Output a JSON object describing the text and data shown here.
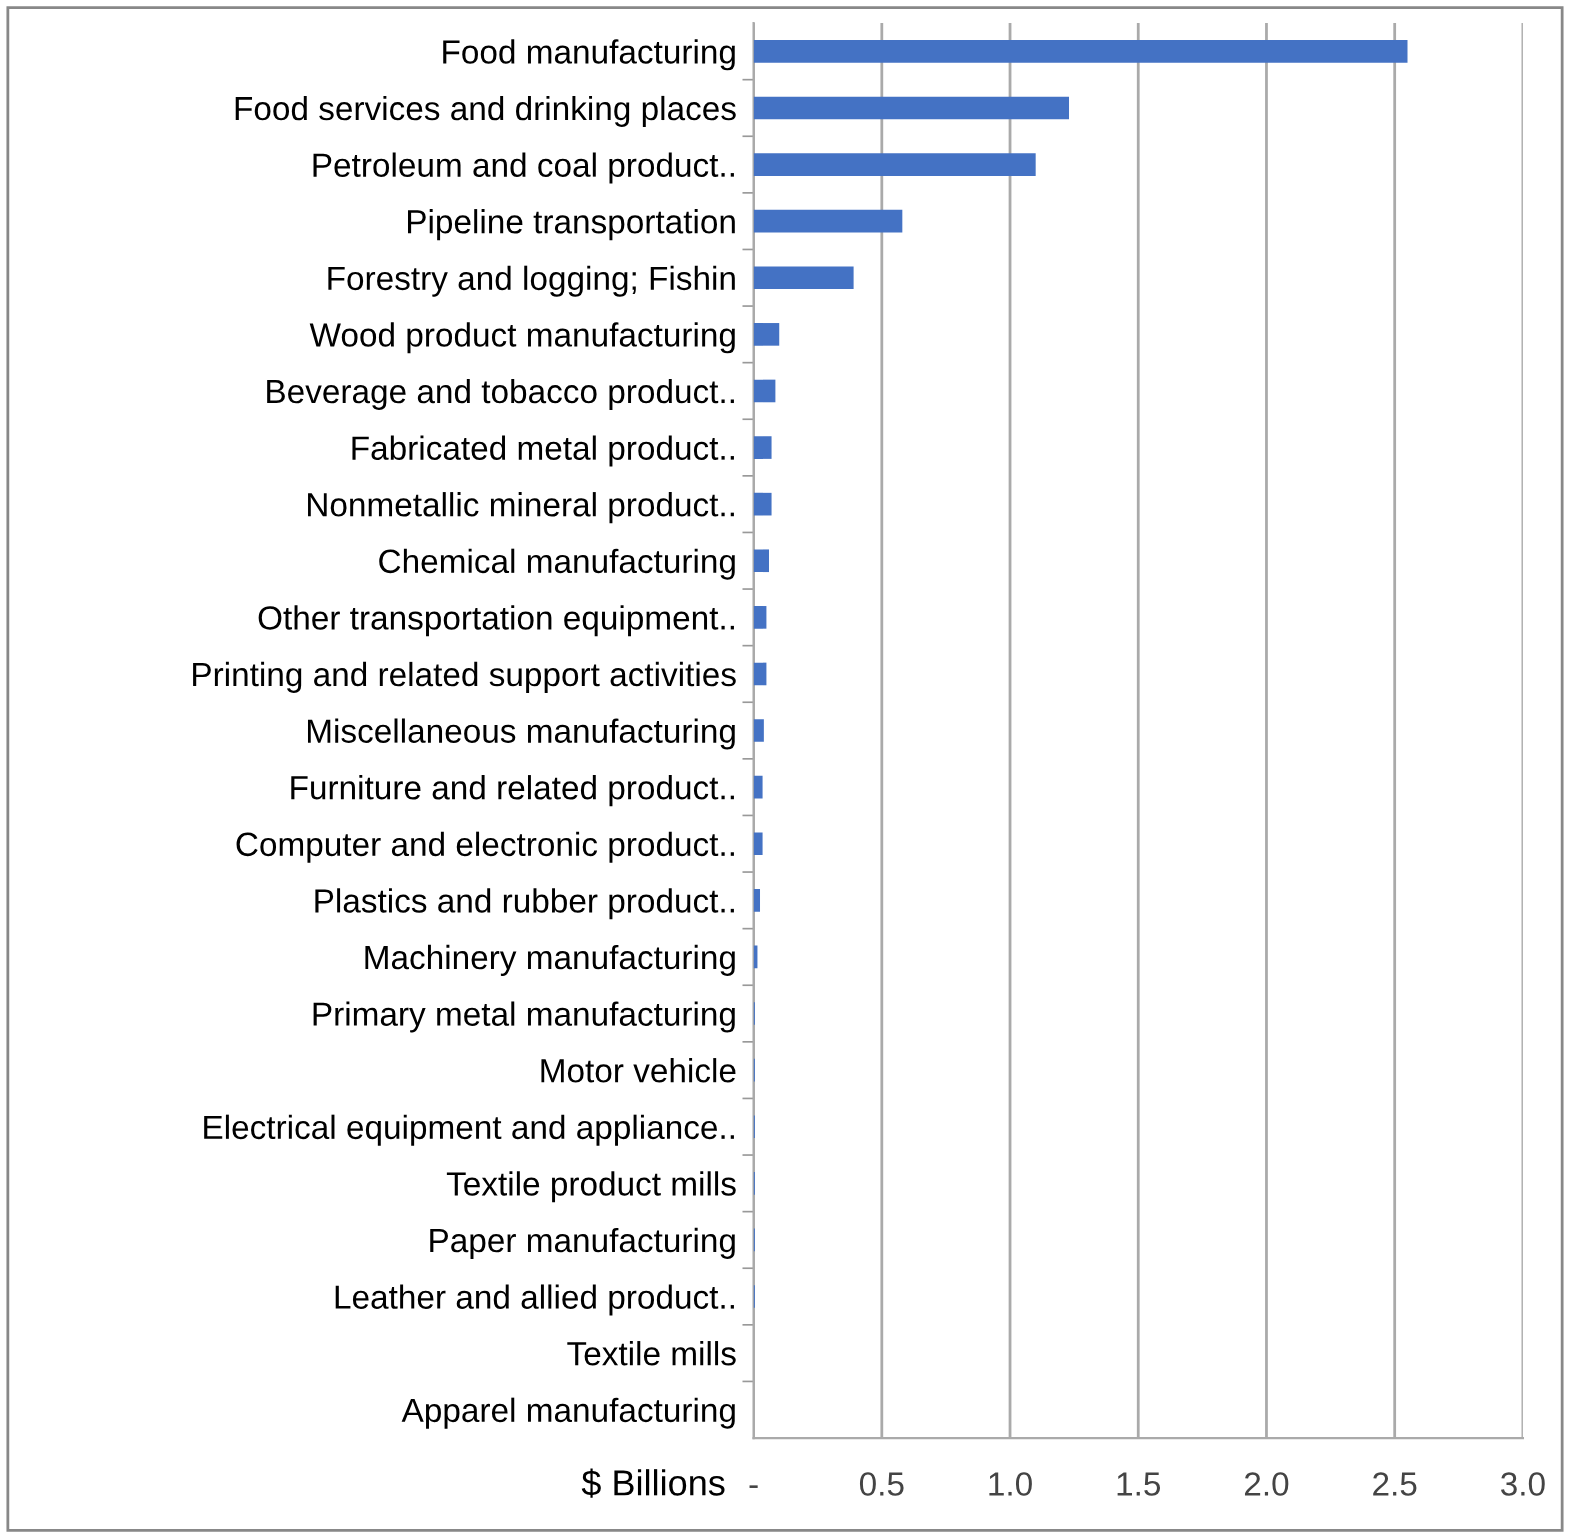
{
  "chart_data": {
    "type": "bar",
    "orientation": "horizontal",
    "xlabel": "$ Billions",
    "categories": [
      "Food manufacturing",
      "Food services and drinking places",
      "Petroleum and coal product..",
      "Pipeline transportation",
      "Forestry and logging; Fishin",
      "Wood product manufacturing",
      "Beverage and tobacco product..",
      "Fabricated metal product..",
      "Nonmetallic mineral product..",
      "Chemical manufacturing",
      "Other transportation equipment..",
      "Printing and related support activities",
      "Miscellaneous manufacturing",
      "Furniture and related product..",
      "Computer and electronic product..",
      "Plastics and rubber product..",
      "Machinery manufacturing",
      "Primary metal manufacturing",
      "Motor vehicle",
      "Electrical equipment and appliance..",
      "Textile product mills",
      "Paper manufacturing",
      "Leather and allied product..",
      "Textile mills",
      "Apparel manufacturing"
    ],
    "values": [
      2.55,
      1.23,
      1.1,
      0.58,
      0.39,
      0.1,
      0.085,
      0.07,
      0.07,
      0.06,
      0.05,
      0.05,
      0.04,
      0.035,
      0.035,
      0.025,
      0.015,
      0.005,
      0.005,
      0.005,
      0.005,
      0.005,
      0.005,
      null,
      null
    ],
    "color": "#4472c4",
    "xlim": [
      0,
      3.0
    ],
    "xticks": [
      {
        "value": 0,
        "label": "-"
      },
      {
        "value": 0.5,
        "label": "0.5"
      },
      {
        "value": 1.0,
        "label": "1.0"
      },
      {
        "value": 1.5,
        "label": "1.5"
      },
      {
        "value": 2.0,
        "label": "2.0"
      },
      {
        "value": 2.5,
        "label": "2.5"
      },
      {
        "value": 3.0,
        "label": "3.0"
      }
    ],
    "grid": "x",
    "legend": false
  }
}
